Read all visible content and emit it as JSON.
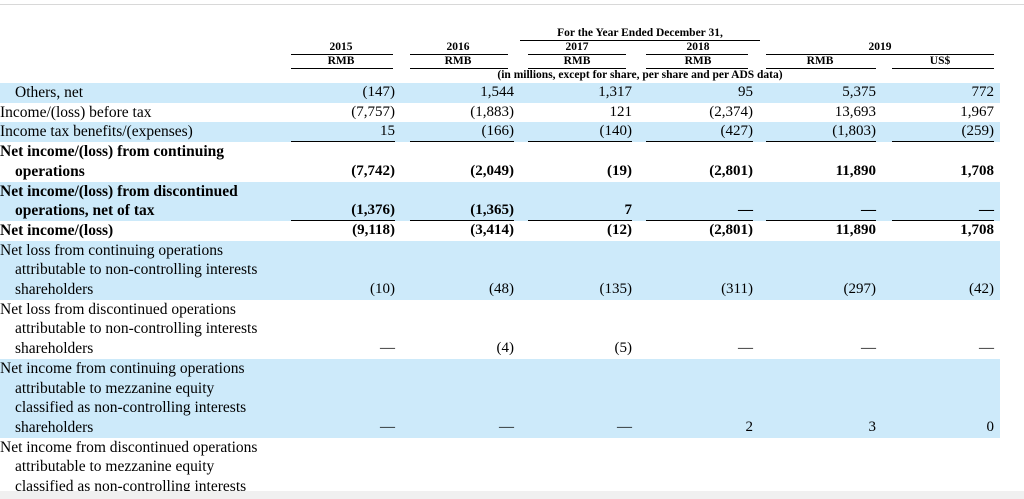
{
  "header": {
    "period": "For the Year Ended December 31,",
    "years": [
      "2015",
      "2016",
      "2017",
      "2018",
      "2019"
    ],
    "currencies": [
      "RMB",
      "RMB",
      "RMB",
      "RMB",
      "RMB",
      "US$"
    ],
    "note": "(in millions, except for share, per share and per ADS data)"
  },
  "rows": [
    {
      "lines": [
        "Others, net"
      ],
      "indent": "first",
      "bold": false,
      "shaded": true,
      "values": [
        "(147)",
        "1,544",
        "1,317",
        "95",
        "5,375",
        "772"
      ]
    },
    {
      "lines": [
        "Income/(loss) before tax"
      ],
      "indent": "none",
      "bold": false,
      "shaded": false,
      "values": [
        "(7,757)",
        "(1,883)",
        "121",
        "(2,374)",
        "13,693",
        "1,967"
      ]
    },
    {
      "lines": [
        "Income tax benefits/(expenses)"
      ],
      "indent": "none",
      "bold": false,
      "shaded": true,
      "values": [
        "15",
        "(166)",
        "(140)",
        "(427)",
        "(1,803)",
        "(259)"
      ]
    },
    {
      "lines": [
        "Net income/(loss) from continuing",
        "operations"
      ],
      "indent": "cont",
      "bold": true,
      "shaded": false,
      "values": [
        "(7,742)",
        "(2,049)",
        "(19)",
        "(2,801)",
        "11,890",
        "1,708"
      ]
    },
    {
      "lines": [
        "Net income/(loss) from discontinued",
        "operations, net of tax"
      ],
      "indent": "cont",
      "bold": true,
      "shaded": true,
      "values": [
        "(1,376)",
        "(1,365)",
        "7",
        "—",
        "—",
        "—"
      ]
    },
    {
      "lines": [
        "Net income/(loss)"
      ],
      "indent": "none",
      "bold": true,
      "shaded": false,
      "values": [
        "(9,118)",
        "(3,414)",
        "(12)",
        "(2,801)",
        "11,890",
        "1,708"
      ]
    },
    {
      "lines": [
        "Net loss from continuing operations",
        "attributable to non-controlling interests",
        "shareholders"
      ],
      "indent": "cont",
      "bold": false,
      "shaded": true,
      "values": [
        "(10)",
        "(48)",
        "(135)",
        "(311)",
        "(297)",
        "(42)"
      ]
    },
    {
      "lines": [
        "Net loss from discontinued operations",
        "attributable to non-controlling interests",
        "shareholders"
      ],
      "indent": "cont",
      "bold": false,
      "shaded": false,
      "values": [
        "—",
        "(4)",
        "(5)",
        "—",
        "—",
        "—"
      ]
    },
    {
      "lines": [
        "Net income from continuing operations",
        "attributable to mezzanine equity",
        "classified as non-controlling interests",
        "shareholders"
      ],
      "indent": "cont",
      "bold": false,
      "shaded": true,
      "values": [
        "—",
        "—",
        "—",
        "2",
        "3",
        "0"
      ]
    },
    {
      "lines": [
        "Net income from discontinued operations",
        "attributable to mezzanine equity",
        "classified as non-controlling interests"
      ],
      "indent": "cont",
      "bold": false,
      "shaded": false,
      "values": []
    }
  ]
}
